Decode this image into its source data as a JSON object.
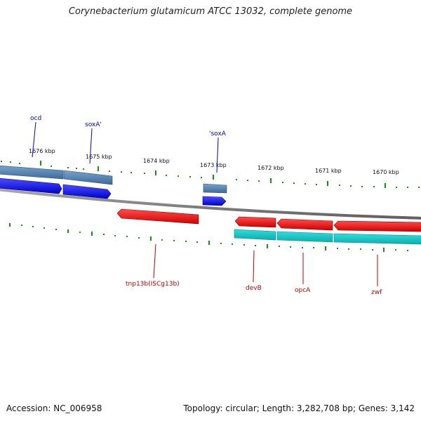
{
  "title": "Corynebacterium glutamicum ATCC 13032, complete genome",
  "footer": {
    "accession": "Accession: NC_006958",
    "summary": "Topology: circular; Length: 3,282,708 bp; Genes: 3,142"
  },
  "colors": {
    "forward_cds": "#0a0aee",
    "forward_gene": "#4a7ab0",
    "reverse_cds": "#ee1010",
    "reverse_gene": "#11c8c8",
    "backbone": "#808080",
    "ticks": "#1a8a1a",
    "forward_label": "#0000c0",
    "reverse_label": "#c00000"
  },
  "scale_labels": [
    "1676 kbp",
    "1675 kbp",
    "1674 kbp",
    "1673 kbp",
    "1672 kbp",
    "1671 kbp",
    "1670 kbp"
  ],
  "forward_genes": [
    {
      "name": "ocd"
    },
    {
      "name": "soxA'"
    },
    {
      "name": "'soxA"
    }
  ],
  "reverse_genes": [
    {
      "name": "tnp13b(ISCg13b)"
    },
    {
      "name": "devB"
    },
    {
      "name": "opcA"
    },
    {
      "name": "zwf"
    }
  ]
}
